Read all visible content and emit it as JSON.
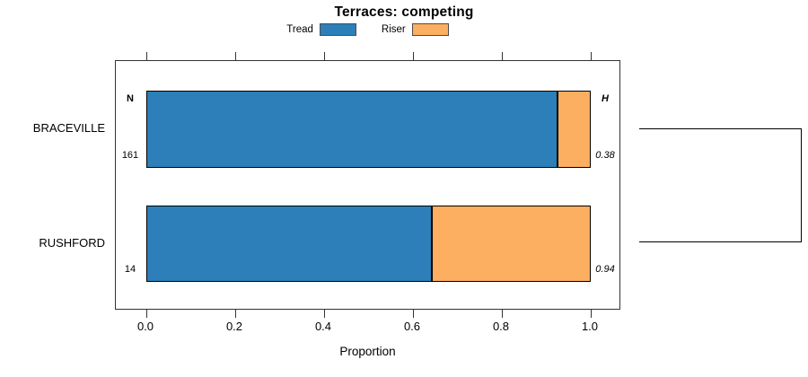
{
  "chart_data": {
    "type": "bar",
    "orientation": "horizontal",
    "stacked": true,
    "title": "Terraces: competing",
    "xlabel": "Proportion",
    "xlim": [
      0,
      1
    ],
    "xticks": [
      0,
      0.2,
      0.4,
      0.6,
      0.8,
      1.0
    ],
    "xtick_labels": [
      "0.0",
      "0.2",
      "0.4",
      "0.6",
      "0.8",
      "1.0"
    ],
    "categories": [
      "BRACEVILLE",
      "RUSHFORD"
    ],
    "series": [
      {
        "name": "Tread",
        "color": "#2c7fb8",
        "values": [
          0.925,
          0.643
        ]
      },
      {
        "name": "Riser",
        "color": "#fcae61",
        "values": [
          0.075,
          0.357
        ]
      }
    ],
    "legend_position": "top",
    "grid": false,
    "annotations": {
      "n_header": "N",
      "h_header": "H",
      "rows": [
        {
          "category": "BRACEVILLE",
          "n": "161",
          "h": "0.38"
        },
        {
          "category": "RUSHFORD",
          "n": "14",
          "h": "0.94"
        }
      ]
    },
    "right_bracket": {
      "joins": [
        "BRACEVILLE",
        "RUSHFORD"
      ]
    }
  },
  "colors": {
    "tread": "#2c7fb8",
    "riser": "#fcae61",
    "bar_border": "#000000",
    "box_border": "#333333",
    "bracket": "#000000",
    "text": "#000000"
  }
}
